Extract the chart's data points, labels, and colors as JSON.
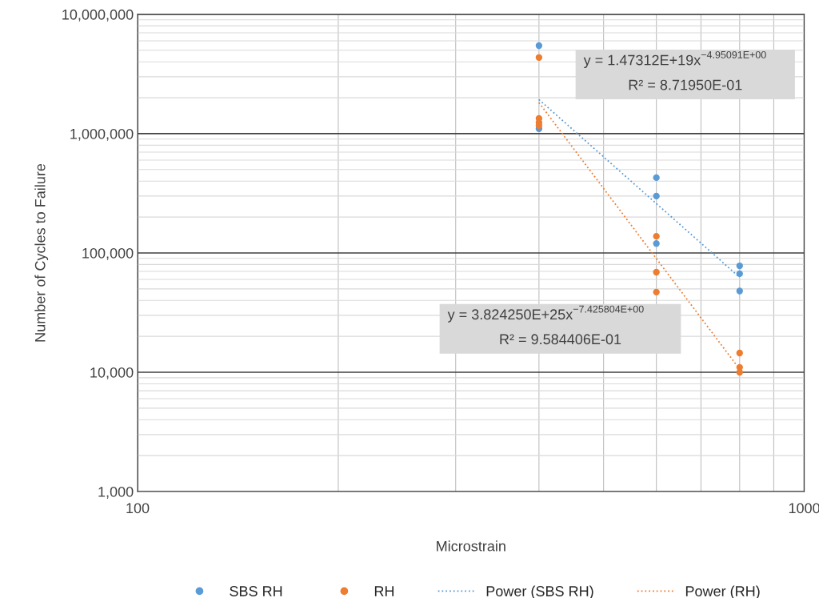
{
  "chart_data": {
    "type": "scatter",
    "xlabel": "Microstrain",
    "ylabel": "Number of Cycles to Failure",
    "log": "xy",
    "grid": true,
    "legend": "bottom",
    "xlim": [
      100,
      1000
    ],
    "xticks": [
      100,
      1000
    ],
    "ylim": [
      1000,
      10000000
    ],
    "yticks": [
      {
        "value": 1000,
        "label": "1,000"
      },
      {
        "value": 10000,
        "label": "10,000"
      },
      {
        "value": 100000,
        "label": "100,000"
      },
      {
        "value": 1000000,
        "label": "1,000,000"
      },
      {
        "value": 10000000,
        "label": "10,000,000"
      }
    ],
    "series": [
      {
        "name": "SBS RH",
        "type": "scatter",
        "marker": "circle",
        "color": "#5b9bd5",
        "x": [
          400,
          400,
          600,
          600,
          600,
          800,
          800,
          800
        ],
        "values": [
          5470000,
          1100000,
          428000,
          300000,
          120000,
          78000,
          67000,
          48000
        ]
      },
      {
        "name": "RH",
        "type": "scatter",
        "marker": "circle",
        "color": "#ed7d31",
        "x": [
          400,
          400,
          400,
          400,
          600,
          600,
          600,
          800,
          800,
          800
        ],
        "values": [
          4350000,
          1340000,
          1240000,
          1170000,
          138000,
          69000,
          47000,
          14500,
          11000,
          10000
        ]
      },
      {
        "name": "Power (SBS RH)",
        "type": "line",
        "marker": "none",
        "line_style": "dotted",
        "color": "#5b9bd5",
        "x": [
          400,
          800
        ],
        "values": [
          1930000,
          62400
        ]
      },
      {
        "name": "Power (RH)",
        "type": "line",
        "marker": "none",
        "line_style": "dotted",
        "color": "#ed7d31",
        "x": [
          400,
          800
        ],
        "values": [
          1820000,
          10600
        ]
      }
    ],
    "annotations": [
      "y = 1.47312E+19x$^{−4.95091E+00}$\nR² = 8.71950E-01",
      "y = 3.824250E+25x$^{−7.425804E+00}$\nR² = 9.584406E-01"
    ]
  }
}
